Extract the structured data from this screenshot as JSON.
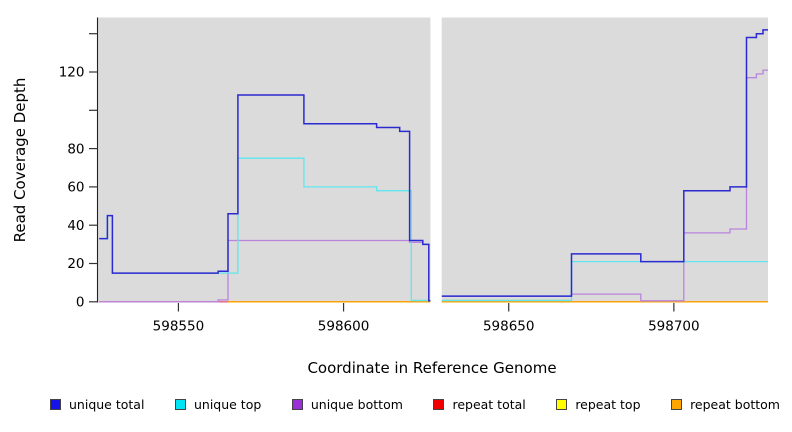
{
  "chart_data": {
    "type": "line",
    "title": "",
    "xlabel": "Coordinate in Reference Genome",
    "ylabel": "Read Coverage Depth",
    "xlim": [
      598525.5,
      598728.5
    ],
    "ylim": [
      0,
      148
    ],
    "grid": false,
    "plot_bg": "#DBDBDB",
    "legend_position": "bottom",
    "coverage_gap_x": [
      598626.3,
      598629.7
    ],
    "x_ticks": [
      {
        "value": 598550,
        "label": "598550"
      },
      {
        "value": 598600,
        "label": "598600"
      },
      {
        "value": 598650,
        "label": "598650"
      },
      {
        "value": 598700,
        "label": "598700"
      }
    ],
    "y_ticks": [
      {
        "value": 0,
        "label": "0"
      },
      {
        "value": 20,
        "label": "20"
      },
      {
        "value": 40,
        "label": "40"
      },
      {
        "value": 60,
        "label": "60"
      },
      {
        "value": 80,
        "label": "80"
      },
      {
        "value": 100,
        "label": ""
      },
      {
        "value": 120,
        "label": "120"
      },
      {
        "value": 140,
        "label": ""
      }
    ],
    "series": [
      {
        "name": "unique total",
        "swatch": "#1414E8",
        "line_color": "#2A2AD0",
        "width": 1.5,
        "z": 7,
        "segments": [
          [
            [
              598526,
              33
            ],
            [
              598528.5,
              45
            ],
            [
              598530,
              15
            ],
            [
              598562,
              16
            ],
            [
              598565,
              46
            ],
            [
              598568,
              108
            ],
            [
              598588,
              93
            ],
            [
              598610,
              91
            ],
            [
              598617,
              89
            ],
            [
              598620,
              32
            ],
            [
              598624,
              30
            ],
            [
              598625.8,
              0.5
            ],
            [
              598626.3,
              0.5
            ]
          ],
          [
            [
              598629.7,
              3
            ],
            [
              598669,
              25
            ],
            [
              598690,
              21
            ],
            [
              598703,
              58
            ],
            [
              598717,
              60
            ],
            [
              598722,
              138
            ],
            [
              598725,
              140
            ],
            [
              598727,
              142
            ],
            [
              598728.5,
              142
            ]
          ]
        ]
      },
      {
        "name": "unique top",
        "swatch": "#00E5F5",
        "line_color": "#5FE6EF",
        "width": 1.3,
        "z": 6,
        "segments": [
          [
            [
              598526,
              33
            ],
            [
              598528.5,
              45
            ],
            [
              598530,
              15
            ],
            [
              598568,
              75
            ],
            [
              598588,
              60
            ],
            [
              598610,
              58
            ],
            [
              598620.5,
              0.7
            ],
            [
              598626.3,
              0.7
            ]
          ],
          [
            [
              598629.7,
              0.7
            ],
            [
              598669,
              21
            ],
            [
              598728.5,
              21
            ]
          ]
        ]
      },
      {
        "name": "unique bottom",
        "swatch": "#9B30D9",
        "line_color": "#BA84DC",
        "width": 1.3,
        "z": 5,
        "segments": [
          [
            [
              598526,
              0
            ],
            [
              598562,
              1
            ],
            [
              598565,
              32
            ],
            [
              598620,
              31
            ],
            [
              598624,
              30
            ],
            [
              598625.8,
              0.5
            ],
            [
              598626.3,
              0.5
            ]
          ],
          [
            [
              598629.7,
              3
            ],
            [
              598669,
              4
            ],
            [
              598690,
              0.5
            ],
            [
              598703,
              36
            ],
            [
              598717,
              38
            ],
            [
              598722,
              117
            ],
            [
              598725,
              119
            ],
            [
              598727,
              121
            ],
            [
              598728.5,
              121
            ]
          ]
        ]
      },
      {
        "name": "repeat total",
        "swatch": "#F00000",
        "line_color": "#E06090",
        "width": 1.3,
        "z": 2,
        "segments": [
          [
            [
              598526,
              0
            ],
            [
              598728.5,
              0
            ]
          ]
        ]
      },
      {
        "name": "repeat top",
        "swatch": "#FFFF00",
        "line_color": "#FFFF00",
        "width": 1.3,
        "z": 1,
        "segments": [
          [
            [
              598526,
              0
            ],
            [
              598728.5,
              0
            ]
          ]
        ]
      },
      {
        "name": "repeat bottom",
        "swatch": "#FFA500",
        "line_color": "#FFA500",
        "width": 1.3,
        "z": 3,
        "segments": [
          [
            [
              598565,
              0
            ],
            [
              598728.5,
              0
            ]
          ]
        ]
      }
    ],
    "overlay_blend_line": {
      "name": "cyan-over-orange blend",
      "line_color": "#72C377",
      "width": 1.2,
      "z": 4,
      "segments": [
        [
          [
            598620.5,
            0.7
          ],
          [
            598626.3,
            0.7
          ]
        ],
        [
          [
            598629.7,
            0.7
          ],
          [
            598669,
            0.7
          ]
        ]
      ]
    }
  },
  "legend": {
    "items": [
      {
        "label": "unique total"
      },
      {
        "label": "unique top"
      },
      {
        "label": "unique bottom"
      },
      {
        "label": "repeat total"
      },
      {
        "label": "repeat top"
      },
      {
        "label": "repeat bottom"
      }
    ]
  }
}
